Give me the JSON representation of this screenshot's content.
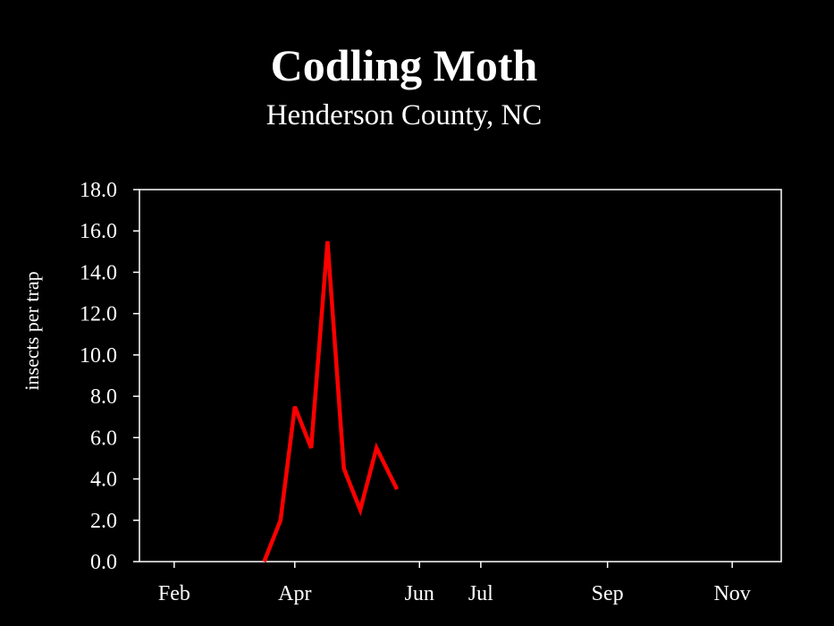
{
  "chart_data": {
    "type": "line",
    "title": "Codling Moth",
    "subtitle": "Henderson County, NC",
    "xlabel": "",
    "ylabel": "insects per trap",
    "x_tick_labels": [
      "Feb",
      "Apr",
      "Jun",
      "Jul",
      "Sep",
      "Nov"
    ],
    "x_tick_dates": [
      "02-01",
      "04-01",
      "06-01",
      "07-01",
      "09-01",
      "11-01"
    ],
    "xlim": [
      "01-15",
      "11-25"
    ],
    "ylim": [
      0,
      18
    ],
    "y_ticks": [
      "0.0",
      "2.0",
      "4.0",
      "6.0",
      "8.0",
      "10.0",
      "12.0",
      "14.0",
      "16.0",
      "18.0"
    ],
    "grid": false,
    "legend": "none",
    "series": [
      {
        "color": "#ff0000",
        "x": [
          "03-17",
          "03-25",
          "04-01",
          "04-09",
          "04-17",
          "04-25",
          "05-03",
          "05-11",
          "05-21"
        ],
        "y": [
          0.0,
          2.0,
          7.5,
          5.5,
          15.5,
          4.5,
          2.5,
          5.5,
          3.5
        ]
      }
    ]
  }
}
